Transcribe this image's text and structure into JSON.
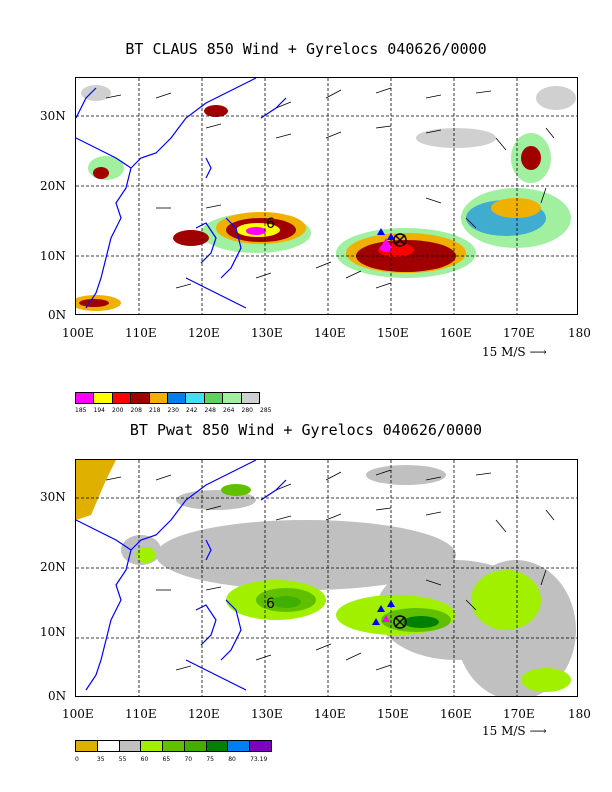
{
  "panel1": {
    "title": "BT CLAUS 850 Wind + Gyrelocs 040626/0000",
    "lat_labels": [
      "30N",
      "20N",
      "10N",
      "0N"
    ],
    "lon_labels": [
      "100E",
      "110E",
      "120E",
      "130E",
      "140E",
      "150E",
      "160E",
      "170E",
      "180"
    ],
    "ref_vector": "15 M/S",
    "colorbar_colors": [
      "#ff00ff",
      "#ffff00",
      "#ff0000",
      "#a00000",
      "#f0b000",
      "#0080f0",
      "#40e0f0",
      "#60d060",
      "#a0f0a0",
      "#d0d0d0"
    ],
    "colorbar_labels": [
      "185",
      "194",
      "200",
      "208",
      "218",
      "230",
      "242",
      "248",
      "264",
      "280",
      "285"
    ]
  },
  "panel2": {
    "title": "BT Pwat 850 Wind + Gyrelocs 040626/0000",
    "lat_labels": [
      "30N",
      "20N",
      "10N",
      "0N"
    ],
    "lon_labels": [
      "100E",
      "110E",
      "120E",
      "130E",
      "140E",
      "150E",
      "160E",
      "170E",
      "180"
    ],
    "ref_vector": "15 M/S",
    "colorbar_colors": [
      "#e0b000",
      "#ffffff",
      "#c0c0c0",
      "#a0f000",
      "#60c000",
      "#40b000",
      "#008000",
      "#0080f0",
      "#8000c0"
    ],
    "colorbar_labels": [
      "0",
      "35",
      "55",
      "60",
      "65",
      "70",
      "75",
      "80",
      "73.19"
    ]
  },
  "colors": {
    "coastline": "#0000ff"
  }
}
